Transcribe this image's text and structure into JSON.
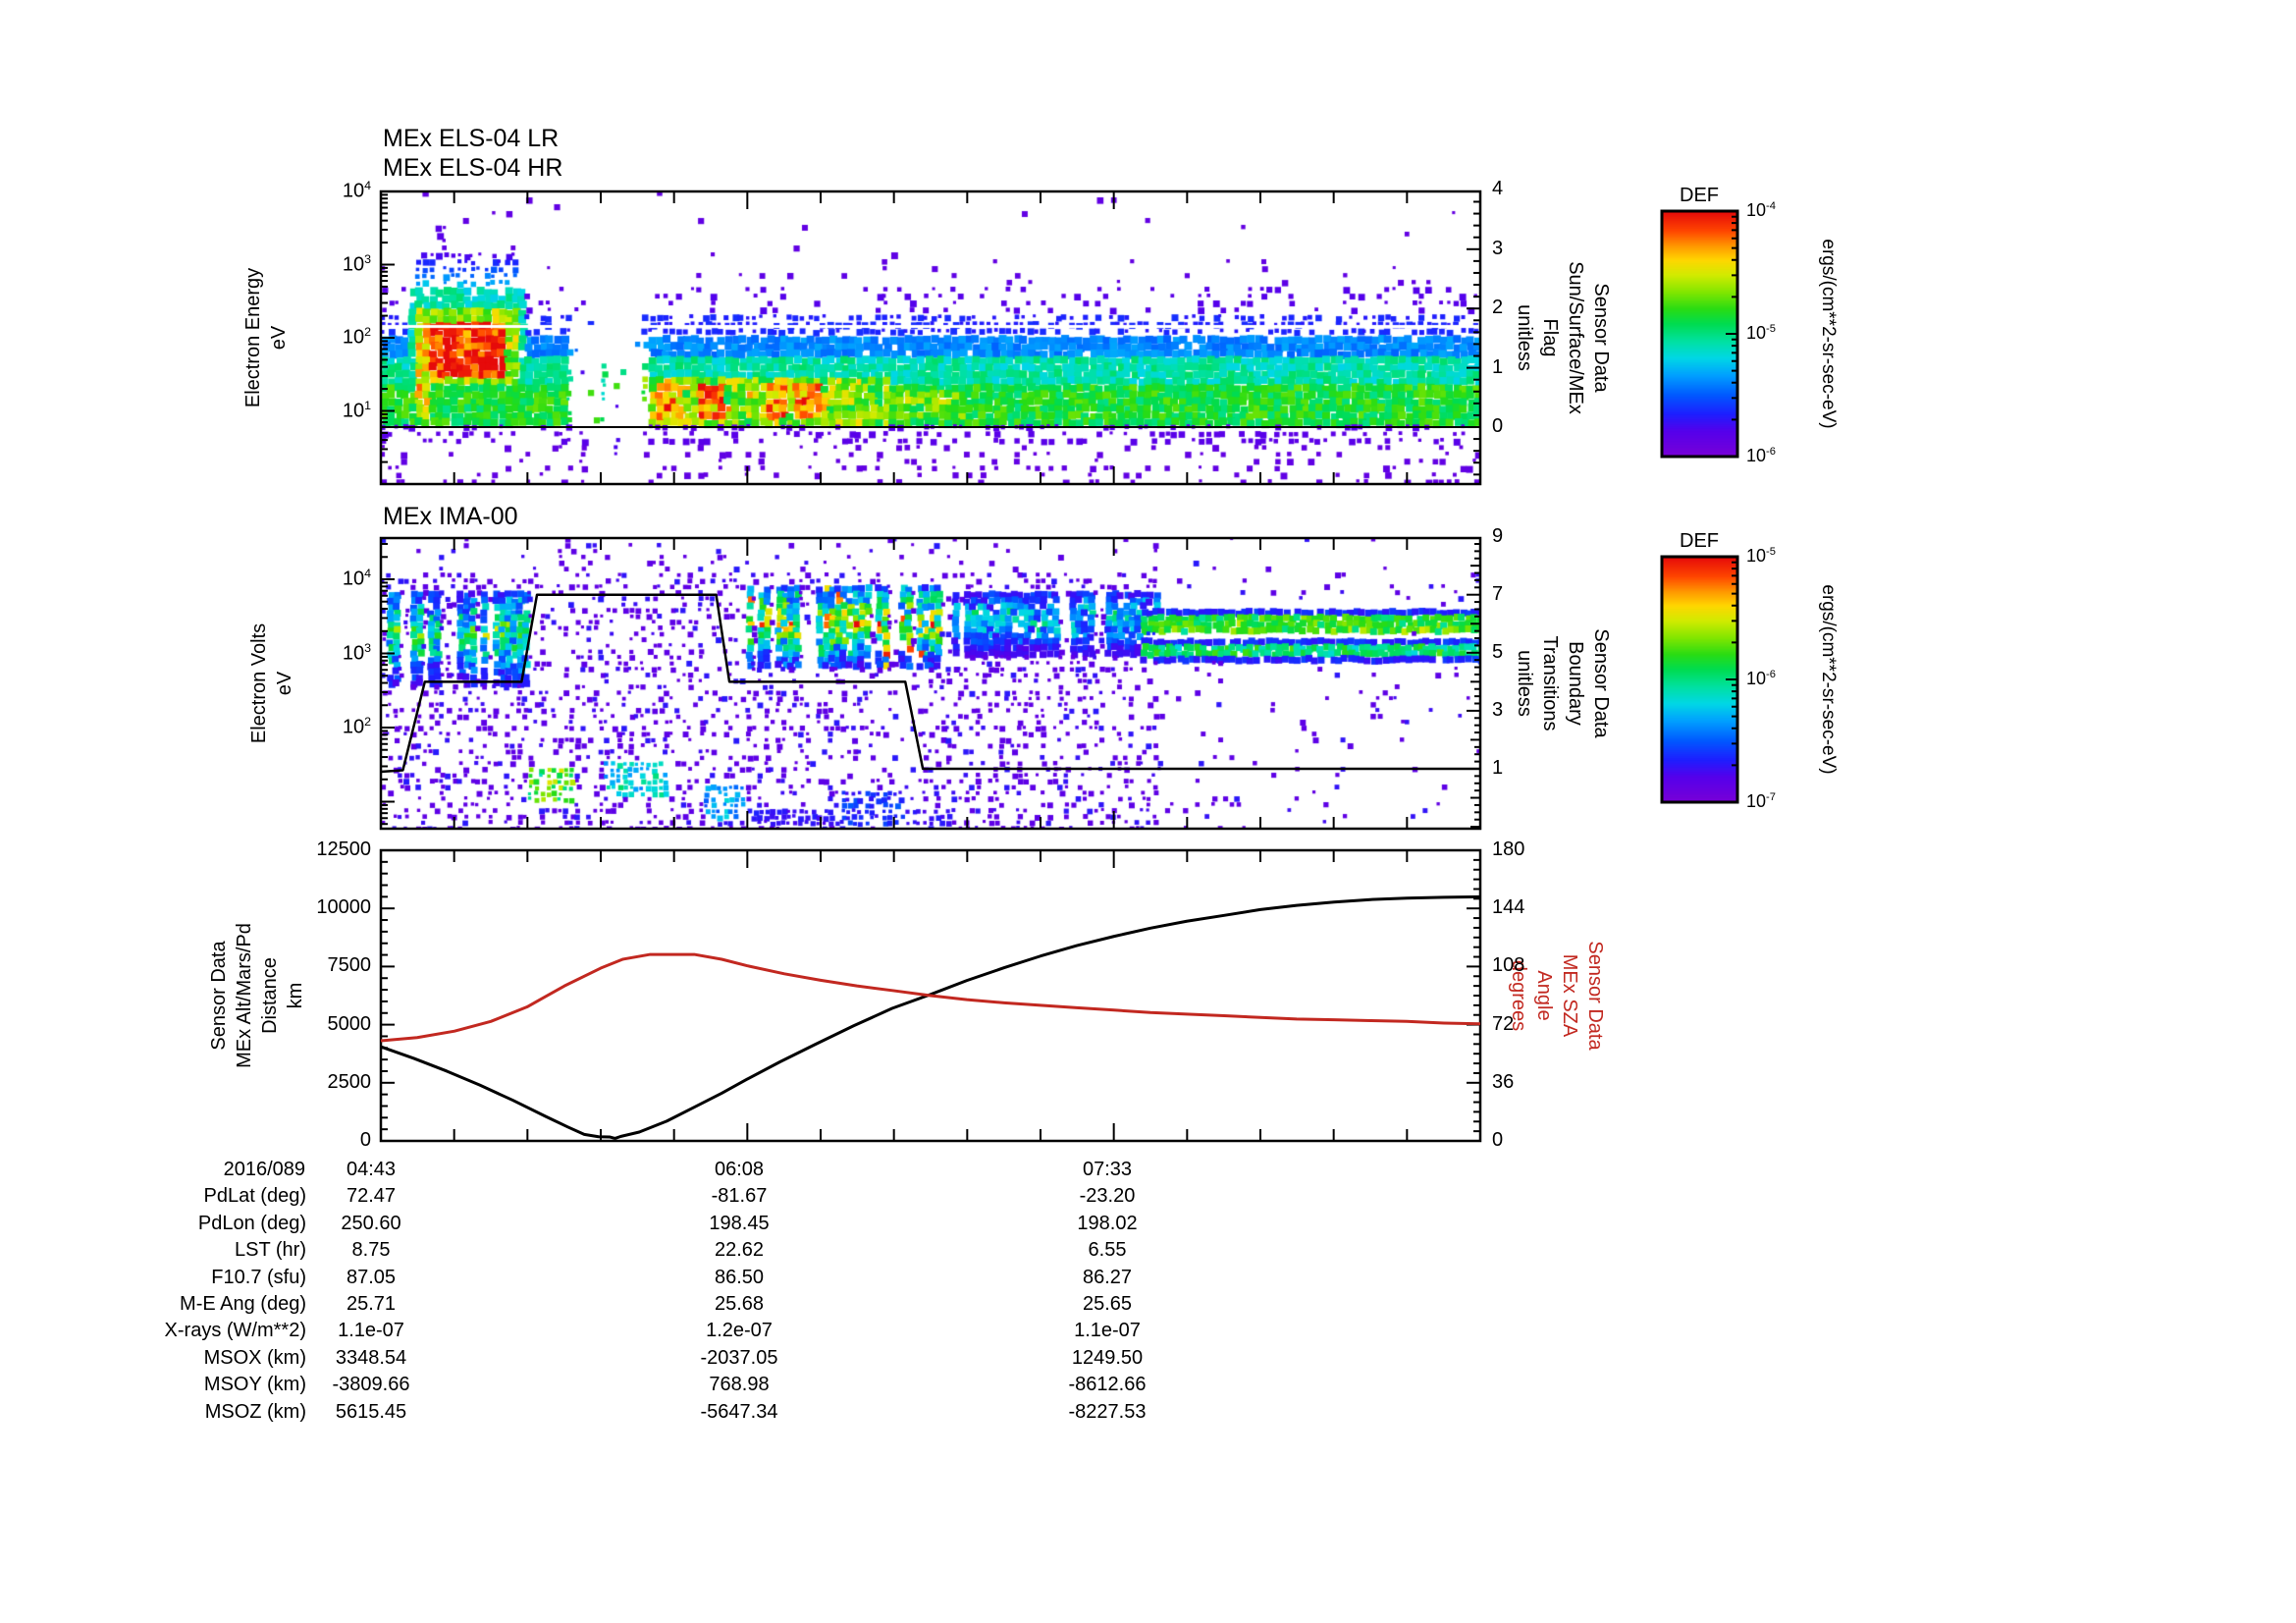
{
  "figure": {
    "background": "#ffffff",
    "axis_color": "#000000",
    "sza_red": "#c22820"
  },
  "chart_data": [
    {
      "type": "heatmap",
      "titles": [
        "MEx ELS-04 LR",
        "MEx ELS-04 HR"
      ],
      "ylabel_lines": [
        "Electron Energy",
        "eV"
      ],
      "y_scale": "log",
      "y_tick_exponents": [
        4,
        3,
        2,
        1
      ],
      "y_range": [
        1,
        10000
      ],
      "x_tick_labels": [
        "04:43",
        "06:08",
        "07:33"
      ],
      "x_major_intervals": 15,
      "right_axis": {
        "label_lines": [
          "Sensor Data",
          "Sun/Surface/MEx",
          "Flag",
          "unitless"
        ],
        "ticks": [
          0,
          1,
          2,
          3,
          4
        ],
        "flag_series": [
          [
            0,
            0
          ],
          [
            1,
            0
          ]
        ]
      },
      "white_line_frac": 0.459,
      "flag_line_frac": 0.805,
      "spec": {
        "seed": 42,
        "rows": [
          [
            0,
            0.26,
            0.018,
            0.06
          ],
          [
            0.26,
            0.34,
            0.07,
            0.07
          ],
          [
            0.34,
            0.42,
            0.2,
            0.09
          ],
          [
            0.42,
            0.5,
            0.72,
            0.17
          ],
          [
            0.5,
            0.575,
            0.97,
            0.3
          ],
          [
            0.575,
            0.655,
            1,
            0.46
          ],
          [
            0.655,
            0.805,
            1,
            0.57
          ],
          [
            0.805,
            0.875,
            0.4,
            0.08
          ],
          [
            0.875,
            1,
            0.22,
            0.06
          ]
        ],
        "gap": [
          0.174,
          0.238
        ],
        "blob": {
          "core": [
            0.038,
            0.112,
            0.435,
            0.625
          ],
          "rim": [
            0.033,
            0.122,
            0.39,
            0.66
          ],
          "ring": [
            0.028,
            0.13,
            0.34,
            0.72
          ],
          "halo": [
            0.03,
            0.125,
            0.22,
            0.34
          ],
          "below": [
            0.035,
            0.12
          ]
        },
        "patches": {
          "region": [
            0.24,
            0.46,
            0.635,
            0.79
          ],
          "hotspots": [
            0.262,
            0.3,
            0.357,
            0.388
          ]
        }
      }
    },
    {
      "type": "heatmap",
      "title": "MEx IMA-00",
      "ylabel_lines": [
        "Electron Volts",
        "eV"
      ],
      "y_scale": "log",
      "y_tick_exponents": [
        4,
        3,
        2
      ],
      "right_axis": {
        "label_lines": [
          "Sensor Data",
          "Boundary",
          "Transitions",
          "unitless"
        ],
        "ticks": [
          1,
          3,
          5,
          7,
          9
        ],
        "boundary_series": [
          [
            0,
            0.9
          ],
          [
            0.02,
            0.95
          ],
          [
            0.04,
            4
          ],
          [
            0.128,
            4
          ],
          [
            0.142,
            7
          ],
          [
            0.305,
            7
          ],
          [
            0.317,
            4
          ],
          [
            0.477,
            4
          ],
          [
            0.493,
            1
          ],
          [
            1,
            1
          ]
        ]
      },
      "spec": {
        "seed": 7,
        "noise_split": 0.705,
        "stripes": [
          [
            0.004,
            0.132,
            0.18,
            0.5,
            0.55
          ],
          [
            0.33,
            0.52,
            0.165,
            0.45,
            0.72
          ],
          [
            0.52,
            0.705,
            0.18,
            0.4,
            0.42
          ]
        ],
        "hbands": [
          [
            0.69,
            1,
            0.253,
            0.328,
            0.52
          ],
          [
            0.69,
            1,
            0.351,
            0.419,
            0.45
          ]
        ],
        "blobs": [
          [
            0.135,
            0.178,
            0.795,
            0.905,
            0.62
          ],
          [
            0.203,
            0.262,
            0.775,
            0.885,
            0.4
          ],
          [
            0.295,
            0.33,
            0.86,
            0.97,
            0.32
          ],
          [
            0.42,
            0.475,
            0.88,
            1,
            0.18
          ],
          [
            0.3,
            0.52,
            0.93,
            1,
            0.13
          ]
        ]
      }
    },
    {
      "type": "line",
      "ylabel_lines": [
        "Sensor Data",
        "MEx Alt/Mars/Pd",
        "Distance",
        "km"
      ],
      "left_ticks": [
        0,
        2500,
        5000,
        7500,
        10000,
        12500
      ],
      "left_range": [
        0,
        12500
      ],
      "right_axis": {
        "label_lines": [
          "Sensor Data",
          "MEx SZA",
          "Angle",
          "degrees"
        ],
        "ticks": [
          0,
          36,
          72,
          108,
          144,
          180
        ],
        "range": [
          0,
          180
        ],
        "color": "#c22820"
      },
      "x_tick_labels": [
        "04:43",
        "06:08",
        "07:33"
      ],
      "series": [
        {
          "name": "MEx Alt/Mars/Pd Distance",
          "axis": "left",
          "color": "#000000",
          "points": [
            [
              0,
              4050
            ],
            [
              0.03,
              3550
            ],
            [
              0.06,
              3000
            ],
            [
              0.09,
              2400
            ],
            [
              0.12,
              1750
            ],
            [
              0.15,
              1050
            ],
            [
              0.17,
              600
            ],
            [
              0.185,
              280
            ],
            [
              0.198,
              180
            ],
            [
              0.208,
              170
            ],
            [
              0.213,
              110
            ],
            [
              0.218,
              190
            ],
            [
              0.235,
              380
            ],
            [
              0.26,
              850
            ],
            [
              0.285,
              1450
            ],
            [
              0.31,
              2050
            ],
            [
              0.333,
              2650
            ],
            [
              0.363,
              3400
            ],
            [
              0.395,
              4150
            ],
            [
              0.43,
              4950
            ],
            [
              0.465,
              5700
            ],
            [
              0.5,
              6300
            ],
            [
              0.533,
              6900
            ],
            [
              0.567,
              7450
            ],
            [
              0.6,
              7950
            ],
            [
              0.633,
              8400
            ],
            [
              0.667,
              8800
            ],
            [
              0.7,
              9150
            ],
            [
              0.733,
              9450
            ],
            [
              0.767,
              9700
            ],
            [
              0.8,
              9950
            ],
            [
              0.833,
              10130
            ],
            [
              0.867,
              10270
            ],
            [
              0.9,
              10380
            ],
            [
              0.933,
              10440
            ],
            [
              0.967,
              10480
            ],
            [
              1,
              10500
            ]
          ]
        },
        {
          "name": "MEx SZA Angle",
          "axis": "right",
          "color": "#c22820",
          "points": [
            [
              0,
              62
            ],
            [
              0.033,
              64
            ],
            [
              0.067,
              68
            ],
            [
              0.1,
              74
            ],
            [
              0.133,
              83
            ],
            [
              0.167,
              96
            ],
            [
              0.2,
              107
            ],
            [
              0.22,
              112.5
            ],
            [
              0.245,
              115.5
            ],
            [
              0.285,
              115.5
            ],
            [
              0.31,
              112.5
            ],
            [
              0.333,
              108.5
            ],
            [
              0.367,
              103.5
            ],
            [
              0.4,
              99.5
            ],
            [
              0.433,
              96
            ],
            [
              0.467,
              93
            ],
            [
              0.5,
              90
            ],
            [
              0.533,
              87.5
            ],
            [
              0.567,
              85.5
            ],
            [
              0.6,
              84
            ],
            [
              0.633,
              82.5
            ],
            [
              0.667,
              81
            ],
            [
              0.7,
              79.5
            ],
            [
              0.733,
              78.5
            ],
            [
              0.767,
              77.5
            ],
            [
              0.8,
              76.5
            ],
            [
              0.833,
              75.5
            ],
            [
              0.867,
              75
            ],
            [
              0.9,
              74.5
            ],
            [
              0.933,
              74
            ],
            [
              0.967,
              73
            ],
            [
              1,
              72.5
            ]
          ]
        }
      ]
    }
  ],
  "colorbars": [
    {
      "title": "DEF",
      "tick_exponents": [
        -4,
        -5,
        -6
      ],
      "units": "ergs/(cm**2-sr-sec-eV)"
    },
    {
      "title": "DEF",
      "tick_exponents": [
        -5,
        -6,
        -7
      ],
      "units": "ergs/(cm**2-sr-sec-eV)"
    }
  ],
  "table": {
    "date_label": "2016/089",
    "time_values": [
      "04:43",
      "06:08",
      "07:33"
    ],
    "rows": [
      {
        "label": "PdLat (deg)",
        "values": [
          "72.47",
          "-81.67",
          "-23.20"
        ]
      },
      {
        "label": "PdLon (deg)",
        "values": [
          "250.60",
          "198.45",
          "198.02"
        ]
      },
      {
        "label": "LST (hr)",
        "values": [
          "8.75",
          "22.62",
          "6.55"
        ]
      },
      {
        "label": "F10.7 (sfu)",
        "values": [
          "87.05",
          "86.50",
          "86.27"
        ]
      },
      {
        "label": "M-E Ang (deg)",
        "values": [
          "25.71",
          "25.68",
          "25.65"
        ]
      },
      {
        "label": "X-rays (W/m**2)",
        "values": [
          "1.1e-07",
          "1.2e-07",
          "1.1e-07"
        ]
      },
      {
        "label": "MSOX (km)",
        "values": [
          "3348.54",
          "-2037.05",
          "1249.50"
        ]
      },
      {
        "label": "MSOY (km)",
        "values": [
          "-3809.66",
          "768.98",
          "-8612.66"
        ]
      },
      {
        "label": "MSOZ (km)",
        "values": [
          "5615.45",
          "-5647.34",
          "-8227.53"
        ]
      }
    ]
  }
}
